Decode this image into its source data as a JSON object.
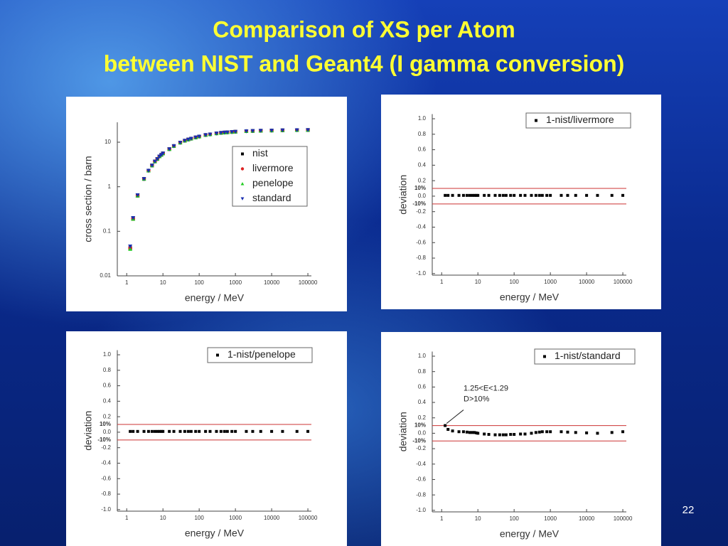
{
  "title": [
    "Comparison of XS per Atom",
    "between NIST and Geant4 (I gamma conversion)"
  ],
  "page_number": "22",
  "chart_data": [
    {
      "type": "scatter",
      "xscale": "log",
      "yscale": "log",
      "xlabel": "energy / MeV",
      "ylabel": "cross section / barn",
      "xlim": [
        0.55,
        125000
      ],
      "ylim": [
        0.01,
        28
      ],
      "xticks": [
        1,
        10,
        100,
        1000,
        10000,
        100000
      ],
      "yticks": [
        0.01,
        0.1,
        1,
        10
      ],
      "legend": "upper right",
      "x": [
        1.25,
        1.5,
        2,
        3,
        4,
        5,
        6,
        7,
        8,
        9,
        10,
        15,
        20,
        30,
        40,
        50,
        60,
        80,
        100,
        150,
        200,
        300,
        400,
        500,
        600,
        800,
        1000,
        2000,
        3000,
        5000,
        10000,
        20000,
        50000,
        100000
      ],
      "series": [
        {
          "name": "nist",
          "color": "#000000",
          "marker": "square",
          "values": [
            0.042,
            0.19,
            0.63,
            1.5,
            2.3,
            3.0,
            3.7,
            4.2,
            4.8,
            5.2,
            5.6,
            7.0,
            8.2,
            9.8,
            10.8,
            11.5,
            12.0,
            12.8,
            13.4,
            14.5,
            15.0,
            15.8,
            16.2,
            16.5,
            16.7,
            17.0,
            17.2,
            17.7,
            17.9,
            18.1,
            18.3,
            18.5,
            18.7,
            18.8
          ]
        },
        {
          "name": "livermore",
          "color": "#dd2222",
          "marker": "circle",
          "values": [
            0.042,
            0.19,
            0.63,
            1.5,
            2.3,
            3.0,
            3.7,
            4.2,
            4.8,
            5.2,
            5.6,
            7.0,
            8.2,
            9.8,
            10.8,
            11.5,
            12.0,
            12.8,
            13.4,
            14.5,
            15.0,
            15.8,
            16.2,
            16.5,
            16.7,
            17.0,
            17.2,
            17.7,
            17.9,
            18.1,
            18.3,
            18.5,
            18.7,
            18.8
          ]
        },
        {
          "name": "penelope",
          "color": "#22cc22",
          "marker": "triangle-up",
          "values": [
            0.04,
            0.19,
            0.63,
            1.5,
            2.3,
            3.0,
            3.7,
            4.2,
            4.8,
            5.2,
            5.6,
            7.0,
            8.2,
            9.8,
            10.8,
            11.5,
            12.0,
            12.8,
            13.4,
            14.5,
            15.0,
            15.8,
            16.2,
            16.5,
            16.7,
            17.0,
            17.2,
            17.7,
            17.9,
            18.1,
            18.3,
            18.5,
            18.7,
            18.8
          ]
        },
        {
          "name": "standard",
          "color": "#1a2fb0",
          "marker": "triangle-down",
          "values": [
            0.046,
            0.2,
            0.65,
            1.5,
            2.3,
            3.0,
            3.7,
            4.2,
            4.8,
            5.2,
            5.6,
            7.0,
            8.2,
            9.8,
            10.8,
            11.5,
            12.0,
            12.8,
            13.4,
            14.5,
            15.0,
            15.8,
            16.2,
            16.5,
            16.7,
            17.0,
            17.2,
            17.7,
            17.9,
            18.1,
            18.3,
            18.5,
            18.7,
            18.8
          ]
        }
      ]
    },
    {
      "type": "scatter",
      "xscale": "log",
      "xlabel": "energy / MeV",
      "ylabel": "deviation",
      "xlim": [
        0.55,
        125000
      ],
      "ylim": [
        -1.02,
        1.06
      ],
      "xticks": [
        1,
        10,
        100,
        1000,
        10000,
        100000
      ],
      "yticks": [
        {
          "value": -1,
          "label": "-1.0"
        },
        -0.8,
        -0.6,
        -0.4,
        -0.2,
        {
          "value": 0,
          "label": "0.0"
        },
        0.2,
        0.4,
        0.6,
        0.8,
        {
          "value": 1,
          "label": "1.0"
        }
      ],
      "reference_lines": [
        {
          "value": 0.1,
          "label": "10%"
        },
        {
          "value": -0.1,
          "label": "-10%"
        }
      ],
      "reference_color": "#cc3333",
      "legend": "upper right",
      "x": [
        1.25,
        1.5,
        2,
        3,
        4,
        5,
        6,
        7,
        8,
        9,
        10,
        15,
        20,
        30,
        40,
        50,
        60,
        80,
        100,
        150,
        200,
        300,
        400,
        500,
        600,
        800,
        1000,
        2000,
        3000,
        5000,
        10000,
        20000,
        50000,
        100000
      ],
      "series": [
        {
          "name": "1-nist/livermore",
          "color": "#000000",
          "marker": "square",
          "values": [
            0.01,
            0.01,
            0.01,
            0.01,
            0.01,
            0.01,
            0.01,
            0.01,
            0.01,
            0.01,
            0.01,
            0.01,
            0.01,
            0.01,
            0.01,
            0.01,
            0.01,
            0.01,
            0.01,
            0.01,
            0.01,
            0.01,
            0.01,
            0.01,
            0.01,
            0.01,
            0.01,
            0.01,
            0.01,
            0.01,
            0.01,
            0.01,
            0.01,
            0.01
          ]
        }
      ]
    },
    {
      "type": "scatter",
      "xscale": "log",
      "xlabel": "energy / MeV",
      "ylabel": "deviation",
      "xlim": [
        0.55,
        125000
      ],
      "ylim": [
        -1.02,
        1.06
      ],
      "xticks": [
        1,
        10,
        100,
        1000,
        10000,
        100000
      ],
      "yticks": [
        {
          "value": -1,
          "label": "-1.0"
        },
        -0.8,
        -0.6,
        -0.4,
        -0.2,
        {
          "value": 0,
          "label": "0.0"
        },
        0.2,
        0.4,
        0.6,
        0.8,
        {
          "value": 1,
          "label": "1.0"
        }
      ],
      "reference_lines": [
        {
          "value": 0.1,
          "label": "10%"
        },
        {
          "value": -0.1,
          "label": "-10%"
        }
      ],
      "reference_color": "#cc3333",
      "legend": "upper right",
      "x": [
        1.25,
        1.5,
        2,
        3,
        4,
        5,
        6,
        7,
        8,
        9,
        10,
        15,
        20,
        30,
        40,
        50,
        60,
        80,
        100,
        150,
        200,
        300,
        400,
        500,
        600,
        800,
        1000,
        2000,
        3000,
        5000,
        10000,
        20000,
        50000,
        100000
      ],
      "series": [
        {
          "name": "1-nist/penelope",
          "color": "#000000",
          "marker": "square",
          "values": [
            0.01,
            0.01,
            0.01,
            0.01,
            0.01,
            0.01,
            0.01,
            0.01,
            0.01,
            0.01,
            0.01,
            0.01,
            0.01,
            0.01,
            0.01,
            0.01,
            0.01,
            0.01,
            0.01,
            0.01,
            0.01,
            0.01,
            0.01,
            0.01,
            0.01,
            0.01,
            0.01,
            0.01,
            0.01,
            0.01,
            0.01,
            0.01,
            0.01,
            0.01
          ]
        }
      ]
    },
    {
      "type": "scatter",
      "xscale": "log",
      "xlabel": "energy / MeV",
      "ylabel": "deviation",
      "xlim": [
        0.55,
        125000
      ],
      "ylim": [
        -1.02,
        1.06
      ],
      "xticks": [
        1,
        10,
        100,
        1000,
        10000,
        100000
      ],
      "yticks": [
        {
          "value": -1,
          "label": "-1.0"
        },
        -0.8,
        -0.6,
        -0.4,
        -0.2,
        {
          "value": 0,
          "label": "0.0"
        },
        0.2,
        0.4,
        0.6,
        0.8,
        {
          "value": 1,
          "label": "1.0"
        }
      ],
      "reference_lines": [
        {
          "value": 0.1,
          "label": "10%"
        },
        {
          "value": -0.1,
          "label": "-10%"
        }
      ],
      "reference_color": "#cc3333",
      "legend": "upper right",
      "annotation": [
        "1.25<E<1.29",
        "D>10%"
      ],
      "x": [
        1.25,
        1.5,
        2,
        3,
        4,
        5,
        6,
        7,
        8,
        9,
        10,
        15,
        20,
        30,
        40,
        50,
        60,
        80,
        100,
        150,
        200,
        300,
        400,
        500,
        600,
        800,
        1000,
        2000,
        3000,
        5000,
        10000,
        20000,
        50000,
        100000
      ],
      "series": [
        {
          "name": "1-nist/standard",
          "color": "#000000",
          "marker": "square",
          "values": [
            0.1,
            0.05,
            0.03,
            0.02,
            0.02,
            0.015,
            0.01,
            0.01,
            0.01,
            0.005,
            0.0,
            -0.01,
            -0.015,
            -0.02,
            -0.02,
            -0.02,
            -0.02,
            -0.015,
            -0.015,
            -0.01,
            -0.01,
            0,
            0.01,
            0.015,
            0.02,
            0.02,
            0.02,
            0.02,
            0.015,
            0.01,
            0.005,
            0.0,
            0.01,
            0.02
          ]
        }
      ]
    }
  ]
}
